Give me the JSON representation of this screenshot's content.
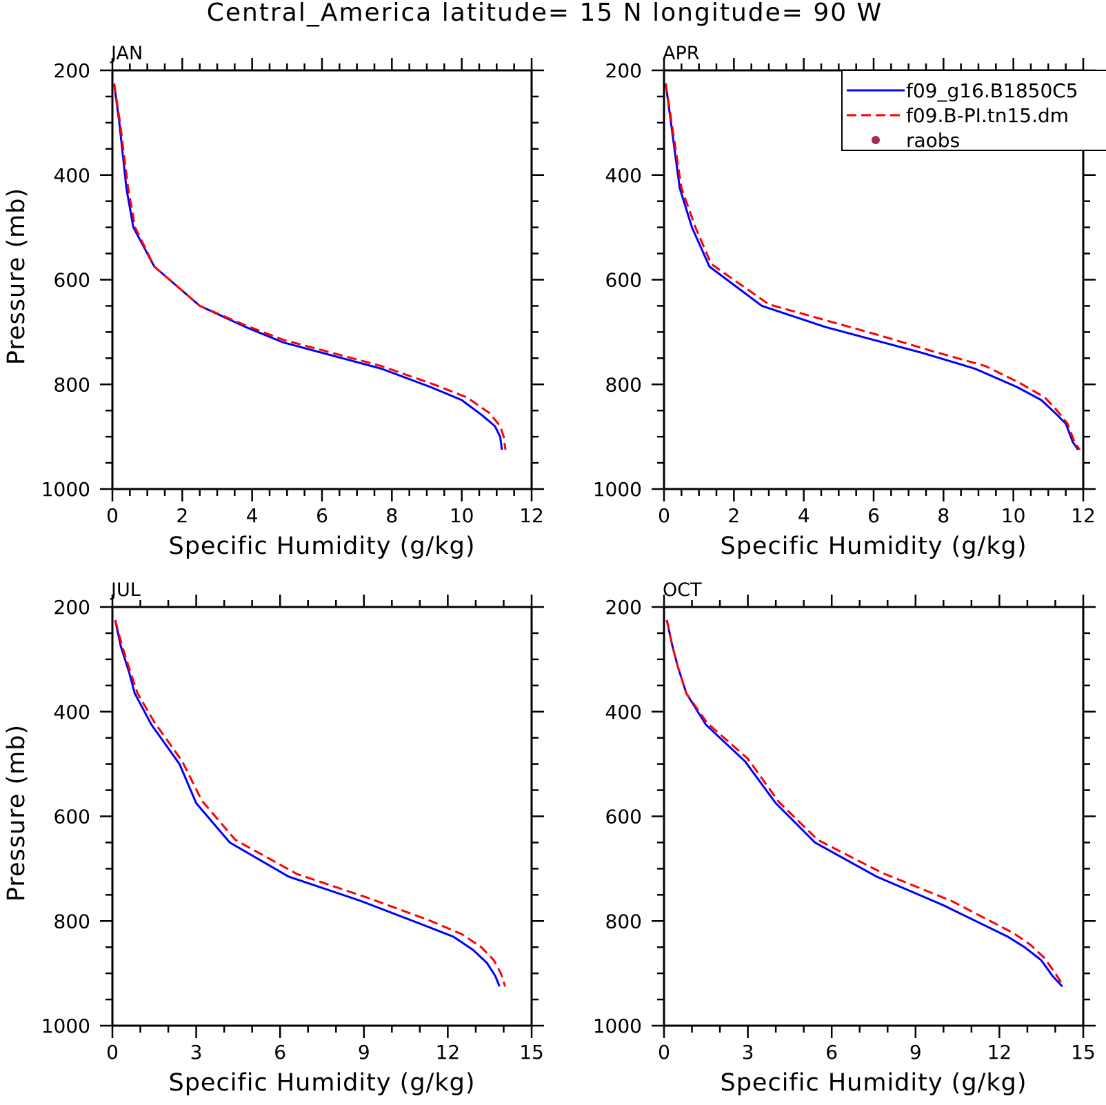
{
  "title": "Central_America  latitude= 15 N longitude= 90 W",
  "legend": {
    "entries": [
      {
        "label": "f09_g16.B1850C5",
        "color": "#0000ff",
        "style": "solid"
      },
      {
        "label": "f09.B-PI.tn15.dm",
        "color": "#ff0000",
        "style": "dashed"
      },
      {
        "label": "raobs",
        "color": "#a0305a",
        "style": "dot"
      }
    ]
  },
  "chart_data": [
    {
      "type": "line",
      "label": "JAN",
      "xlabel": "Specific Humidity (g/kg)",
      "ylabel": "Pressure (mb)",
      "xlim": [
        0,
        12
      ],
      "ylim": [
        1000,
        200
      ],
      "x_ticks": [
        0,
        2,
        4,
        6,
        8,
        10,
        12
      ],
      "y_ticks": [
        200,
        400,
        600,
        800,
        1000
      ],
      "series": [
        {
          "name": "f09_g16.B1850C5",
          "color": "#0000ff",
          "style": "solid",
          "points": [
            [
              0.05,
              225
            ],
            [
              0.2,
              300
            ],
            [
              0.4,
              425
            ],
            [
              0.6,
              500
            ],
            [
              1.2,
              575
            ],
            [
              2.5,
              650
            ],
            [
              3.8,
              690
            ],
            [
              4.9,
              720
            ],
            [
              6.3,
              745
            ],
            [
              7.7,
              770
            ],
            [
              9.1,
              805
            ],
            [
              10.0,
              830
            ],
            [
              10.6,
              860
            ],
            [
              10.95,
              880
            ],
            [
              11.1,
              900
            ],
            [
              11.15,
              925
            ]
          ]
        },
        {
          "name": "f09.B-PI.tn15.dm",
          "color": "#ff0000",
          "style": "dashed",
          "points": [
            [
              0.05,
              225
            ],
            [
              0.22,
              300
            ],
            [
              0.45,
              425
            ],
            [
              0.65,
              500
            ],
            [
              1.2,
              575
            ],
            [
              2.5,
              650
            ],
            [
              3.8,
              687
            ],
            [
              4.9,
              715
            ],
            [
              6.3,
              740
            ],
            [
              7.7,
              765
            ],
            [
              9.2,
              800
            ],
            [
              10.15,
              825
            ],
            [
              10.8,
              855
            ],
            [
              11.1,
              880
            ],
            [
              11.2,
              900
            ],
            [
              11.25,
              925
            ]
          ]
        }
      ]
    },
    {
      "type": "line",
      "label": "APR",
      "xlabel": "Specific Humidity (g/kg)",
      "ylabel": "Pressure (mb)",
      "xlim": [
        0,
        12
      ],
      "ylim": [
        1000,
        200
      ],
      "x_ticks": [
        0,
        2,
        4,
        6,
        8,
        10,
        12
      ],
      "y_ticks": [
        200,
        400,
        600,
        800,
        1000
      ],
      "series": [
        {
          "name": "f09_g16.B1850C5",
          "color": "#0000ff",
          "style": "solid",
          "points": [
            [
              0.05,
              225
            ],
            [
              0.2,
              300
            ],
            [
              0.45,
              425
            ],
            [
              0.8,
              500
            ],
            [
              1.3,
              575
            ],
            [
              2.8,
              650
            ],
            [
              4.6,
              690
            ],
            [
              6.0,
              715
            ],
            [
              7.4,
              740
            ],
            [
              8.9,
              770
            ],
            [
              10.1,
              805
            ],
            [
              10.8,
              830
            ],
            [
              11.2,
              855
            ],
            [
              11.5,
              875
            ],
            [
              11.7,
              910
            ],
            [
              11.85,
              925
            ]
          ]
        },
        {
          "name": "f09.B-PI.tn15.dm",
          "color": "#ff0000",
          "style": "dashed",
          "points": [
            [
              0.05,
              225
            ],
            [
              0.22,
              300
            ],
            [
              0.5,
              425
            ],
            [
              0.9,
              500
            ],
            [
              1.35,
              570
            ],
            [
              3.0,
              647
            ],
            [
              4.6,
              677
            ],
            [
              6.1,
              705
            ],
            [
              7.6,
              735
            ],
            [
              9.2,
              765
            ],
            [
              10.2,
              798
            ],
            [
              10.9,
              825
            ],
            [
              11.25,
              850
            ],
            [
              11.55,
              875
            ],
            [
              11.75,
              910
            ],
            [
              11.9,
              925
            ]
          ]
        }
      ]
    },
    {
      "type": "line",
      "label": "JUL",
      "xlabel": "Specific Humidity (g/kg)",
      "ylabel": "Pressure (mb)",
      "xlim": [
        0,
        15
      ],
      "ylim": [
        1000,
        200
      ],
      "x_ticks": [
        0,
        3,
        6,
        9,
        12,
        15
      ],
      "y_ticks": [
        200,
        400,
        600,
        800,
        1000
      ],
      "series": [
        {
          "name": "f09_g16.B1850C5",
          "color": "#0000ff",
          "style": "solid",
          "points": [
            [
              0.1,
              225
            ],
            [
              0.3,
              275
            ],
            [
              0.6,
              325
            ],
            [
              0.8,
              365
            ],
            [
              1.4,
              425
            ],
            [
              2.4,
              500
            ],
            [
              3.0,
              575
            ],
            [
              4.2,
              650
            ],
            [
              6.3,
              715
            ],
            [
              8.8,
              760
            ],
            [
              11.0,
              805
            ],
            [
              12.2,
              830
            ],
            [
              12.9,
              855
            ],
            [
              13.4,
              880
            ],
            [
              13.7,
              905
            ],
            [
              13.85,
              925
            ]
          ]
        },
        {
          "name": "f09.B-PI.tn15.dm",
          "color": "#ff0000",
          "style": "dashed",
          "points": [
            [
              0.1,
              225
            ],
            [
              0.35,
              275
            ],
            [
              0.65,
              325
            ],
            [
              0.9,
              365
            ],
            [
              1.5,
              420
            ],
            [
              2.5,
              495
            ],
            [
              3.2,
              570
            ],
            [
              4.4,
              645
            ],
            [
              6.6,
              710
            ],
            [
              9.1,
              755
            ],
            [
              11.3,
              798
            ],
            [
              12.5,
              825
            ],
            [
              13.2,
              850
            ],
            [
              13.65,
              875
            ],
            [
              13.9,
              900
            ],
            [
              14.05,
              925
            ]
          ]
        }
      ]
    },
    {
      "type": "line",
      "label": "OCT",
      "xlabel": "Specific Humidity (g/kg)",
      "ylabel": "Pressure (mb)",
      "xlim": [
        0,
        15
      ],
      "ylim": [
        1000,
        200
      ],
      "x_ticks": [
        0,
        3,
        6,
        9,
        12,
        15
      ],
      "y_ticks": [
        200,
        400,
        600,
        800,
        1000
      ],
      "series": [
        {
          "name": "f09_g16.B1850C5",
          "color": "#0000ff",
          "style": "solid",
          "points": [
            [
              0.1,
              225
            ],
            [
              0.3,
              275
            ],
            [
              0.5,
              315
            ],
            [
              0.8,
              365
            ],
            [
              1.5,
              425
            ],
            [
              2.9,
              495
            ],
            [
              4.0,
              575
            ],
            [
              5.4,
              650
            ],
            [
              7.6,
              715
            ],
            [
              10.0,
              770
            ],
            [
              12.3,
              830
            ],
            [
              12.9,
              850
            ],
            [
              13.5,
              875
            ],
            [
              13.9,
              905
            ],
            [
              14.25,
              925
            ]
          ]
        },
        {
          "name": "f09.B-PI.tn15.dm",
          "color": "#ff0000",
          "style": "dashed",
          "points": [
            [
              0.1,
              225
            ],
            [
              0.3,
              275
            ],
            [
              0.5,
              315
            ],
            [
              0.8,
              365
            ],
            [
              1.55,
              422
            ],
            [
              3.0,
              490
            ],
            [
              4.1,
              572
            ],
            [
              5.5,
              645
            ],
            [
              7.8,
              708
            ],
            [
              10.3,
              762
            ],
            [
              12.5,
              823
            ],
            [
              13.1,
              845
            ],
            [
              13.6,
              870
            ],
            [
              14.0,
              900
            ],
            [
              14.3,
              925
            ]
          ]
        }
      ]
    }
  ]
}
